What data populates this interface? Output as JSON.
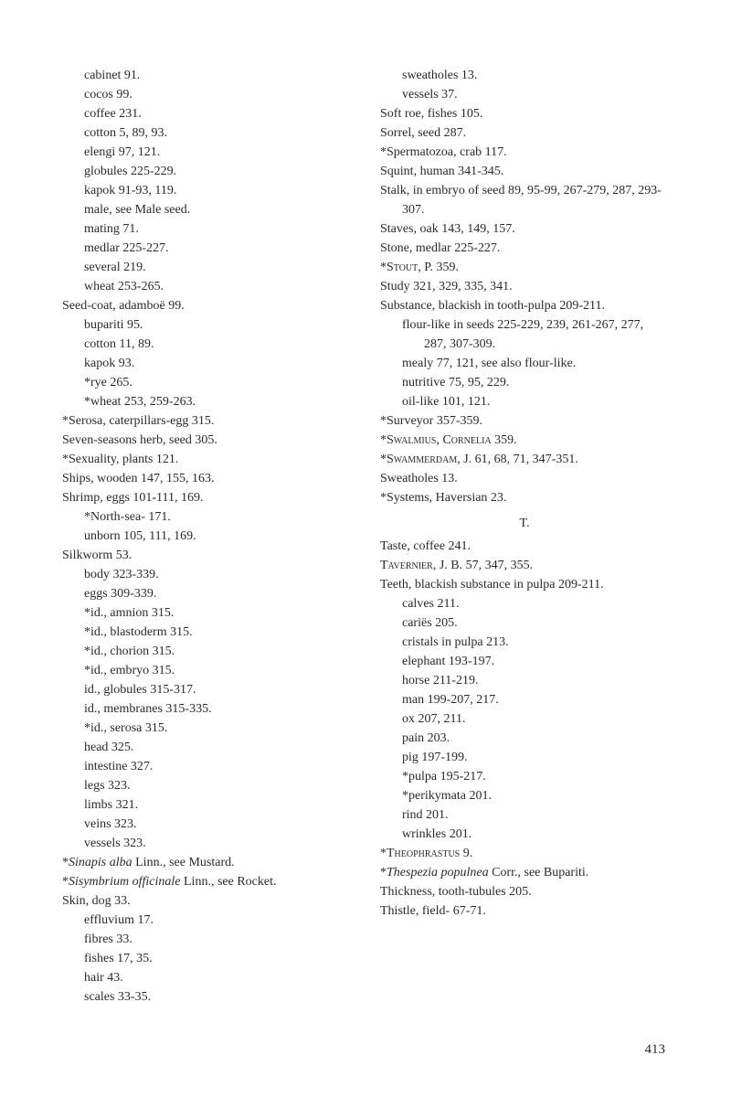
{
  "left_column": [
    {
      "text": "cabinet 91.",
      "cls": "entry"
    },
    {
      "text": "cocos 99.",
      "cls": "entry"
    },
    {
      "text": "coffee 231.",
      "cls": "entry"
    },
    {
      "text": "cotton 5, 89, 93.",
      "cls": "entry"
    },
    {
      "text": "elengi 97, 121.",
      "cls": "entry"
    },
    {
      "text": "globules 225-229.",
      "cls": "entry"
    },
    {
      "text": "kapok 91-93, 119.",
      "cls": "entry"
    },
    {
      "text": "male, see Male seed.",
      "cls": "entry"
    },
    {
      "text": "mating 71.",
      "cls": "entry"
    },
    {
      "text": "medlar 225-227.",
      "cls": "entry"
    },
    {
      "text": "several 219.",
      "cls": "entry"
    },
    {
      "text": "wheat 253-265.",
      "cls": "entry"
    },
    {
      "text": "Seed-coat, adamboë 99.",
      "cls": "entry top"
    },
    {
      "text": "bupariti 95.",
      "cls": "entry"
    },
    {
      "text": "cotton 11, 89.",
      "cls": "entry"
    },
    {
      "text": "kapok 93.",
      "cls": "entry"
    },
    {
      "text": "*rye 265.",
      "cls": "entry"
    },
    {
      "text": "*wheat 253, 259-263.",
      "cls": "entry"
    },
    {
      "text": "*Serosa, caterpillars-egg 315.",
      "cls": "entry top"
    },
    {
      "text": "Seven-seasons herb, seed 305.",
      "cls": "entry top"
    },
    {
      "text": "*Sexuality, plants 121.",
      "cls": "entry top"
    },
    {
      "text": "Ships, wooden 147, 155, 163.",
      "cls": "entry top"
    },
    {
      "text": "Shrimp, eggs 101-111, 169.",
      "cls": "entry top"
    },
    {
      "text": "*North-sea- 171.",
      "cls": "entry"
    },
    {
      "text": "unborn 105, 111, 169.",
      "cls": "entry"
    },
    {
      "text": "Silkworm 53.",
      "cls": "entry top"
    },
    {
      "text": "body 323-339.",
      "cls": "entry"
    },
    {
      "text": "eggs 309-339.",
      "cls": "entry"
    },
    {
      "text": "*id., amnion 315.",
      "cls": "entry"
    },
    {
      "text": "*id., blastoderm 315.",
      "cls": "entry"
    },
    {
      "text": "*id., chorion 315.",
      "cls": "entry"
    },
    {
      "text": "*id., embryo 315.",
      "cls": "entry"
    },
    {
      "text": "id., globules 315-317.",
      "cls": "entry"
    },
    {
      "text": "id., membranes 315-335.",
      "cls": "entry"
    },
    {
      "text": "*id., serosa 315.",
      "cls": "entry"
    },
    {
      "text": "head 325.",
      "cls": "entry"
    },
    {
      "text": "intestine 327.",
      "cls": "entry"
    },
    {
      "text": "legs 323.",
      "cls": "entry"
    },
    {
      "text": "limbs 321.",
      "cls": "entry"
    },
    {
      "text": "veins 323.",
      "cls": "entry"
    },
    {
      "text": "vessels 323.",
      "cls": "entry"
    },
    {
      "html": "*<i>Sinapis alba</i> Linn., see Mustard.",
      "cls": "entry top"
    },
    {
      "html": "*<i>Sisymbrium officinale</i> Linn., see Rocket.",
      "cls": "entry top"
    },
    {
      "text": "Skin, dog 33.",
      "cls": "entry top"
    },
    {
      "text": "effluvium 17.",
      "cls": "entry"
    },
    {
      "text": "fibres 33.",
      "cls": "entry"
    },
    {
      "text": "fishes 17, 35.",
      "cls": "entry"
    },
    {
      "text": "hair 43.",
      "cls": "entry"
    },
    {
      "text": "scales 33-35.",
      "cls": "entry"
    }
  ],
  "right_column_before": [
    {
      "text": "sweatholes 13.",
      "cls": "entry"
    },
    {
      "text": "vessels 37.",
      "cls": "entry"
    },
    {
      "text": "Soft roe, fishes 105.",
      "cls": "entry top"
    },
    {
      "text": "Sorrel, seed 287.",
      "cls": "entry top"
    },
    {
      "text": "*Spermatozoa, crab 117.",
      "cls": "entry top"
    },
    {
      "text": "Squint, human 341-345.",
      "cls": "entry top"
    },
    {
      "text": "Stalk, in embryo of seed 89, 95-99, 267-279, 287, 293-307.",
      "cls": "entry top"
    },
    {
      "text": "Staves, oak 143, 149, 157.",
      "cls": "entry top"
    },
    {
      "text": "Stone, medlar 225-227.",
      "cls": "entry top"
    },
    {
      "html": "*<span class='smallcaps'>Stout</span>, P. 359.",
      "cls": "entry top"
    },
    {
      "text": "Study 321, 329, 335, 341.",
      "cls": "entry top"
    },
    {
      "text": "Substance, blackish in tooth-pulpa 209-211.",
      "cls": "entry top"
    },
    {
      "text": "flour-like in seeds 225-229, 239, 261-267, 277, 287, 307-309.",
      "cls": "entry"
    },
    {
      "text": "mealy 77, 121, see also flour-like.",
      "cls": "entry"
    },
    {
      "text": "nutritive 75, 95, 229.",
      "cls": "entry"
    },
    {
      "text": "oil-like 101, 121.",
      "cls": "entry"
    },
    {
      "text": "*Surveyor 357-359.",
      "cls": "entry top"
    },
    {
      "html": "*<span class='smallcaps'>Swalmius, Cornelia</span> 359.",
      "cls": "entry top"
    },
    {
      "html": "*<span class='smallcaps'>Swammerdam</span>, J. 61, 68, 71, 347-351.",
      "cls": "entry top"
    },
    {
      "text": "Sweatholes 13.",
      "cls": "entry top"
    },
    {
      "text": "*Systems, Haversian 23.",
      "cls": "entry top"
    }
  ],
  "section_letter": "T.",
  "right_column_after": [
    {
      "text": "Taste, coffee 241.",
      "cls": "entry top"
    },
    {
      "html": "<span class='smallcaps'>Tavernier</span>, J. B. 57, 347, 355.",
      "cls": "entry top"
    },
    {
      "text": "Teeth, blackish substance in pulpa 209-211.",
      "cls": "entry top"
    },
    {
      "text": "calves 211.",
      "cls": "entry"
    },
    {
      "text": "cariës 205.",
      "cls": "entry"
    },
    {
      "text": "cristals in pulpa 213.",
      "cls": "entry"
    },
    {
      "text": "elephant 193-197.",
      "cls": "entry"
    },
    {
      "text": "horse 211-219.",
      "cls": "entry"
    },
    {
      "text": "man 199-207, 217.",
      "cls": "entry"
    },
    {
      "text": "ox 207, 211.",
      "cls": "entry"
    },
    {
      "text": "pain 203.",
      "cls": "entry"
    },
    {
      "text": "pig 197-199.",
      "cls": "entry"
    },
    {
      "text": "*pulpa 195-217.",
      "cls": "entry"
    },
    {
      "text": "*perikymata 201.",
      "cls": "entry"
    },
    {
      "text": "rind 201.",
      "cls": "entry"
    },
    {
      "text": "wrinkles 201.",
      "cls": "entry"
    },
    {
      "html": "*<span class='smallcaps'>Theophrastus</span> 9.",
      "cls": "entry top"
    },
    {
      "html": "*<i>Thespezia populnea</i> Corr., see Bupariti.",
      "cls": "entry top"
    },
    {
      "text": "Thickness, tooth-tubules 205.",
      "cls": "entry top"
    },
    {
      "text": "Thistle, field- 67-71.",
      "cls": "entry top"
    }
  ],
  "page_number": "413"
}
